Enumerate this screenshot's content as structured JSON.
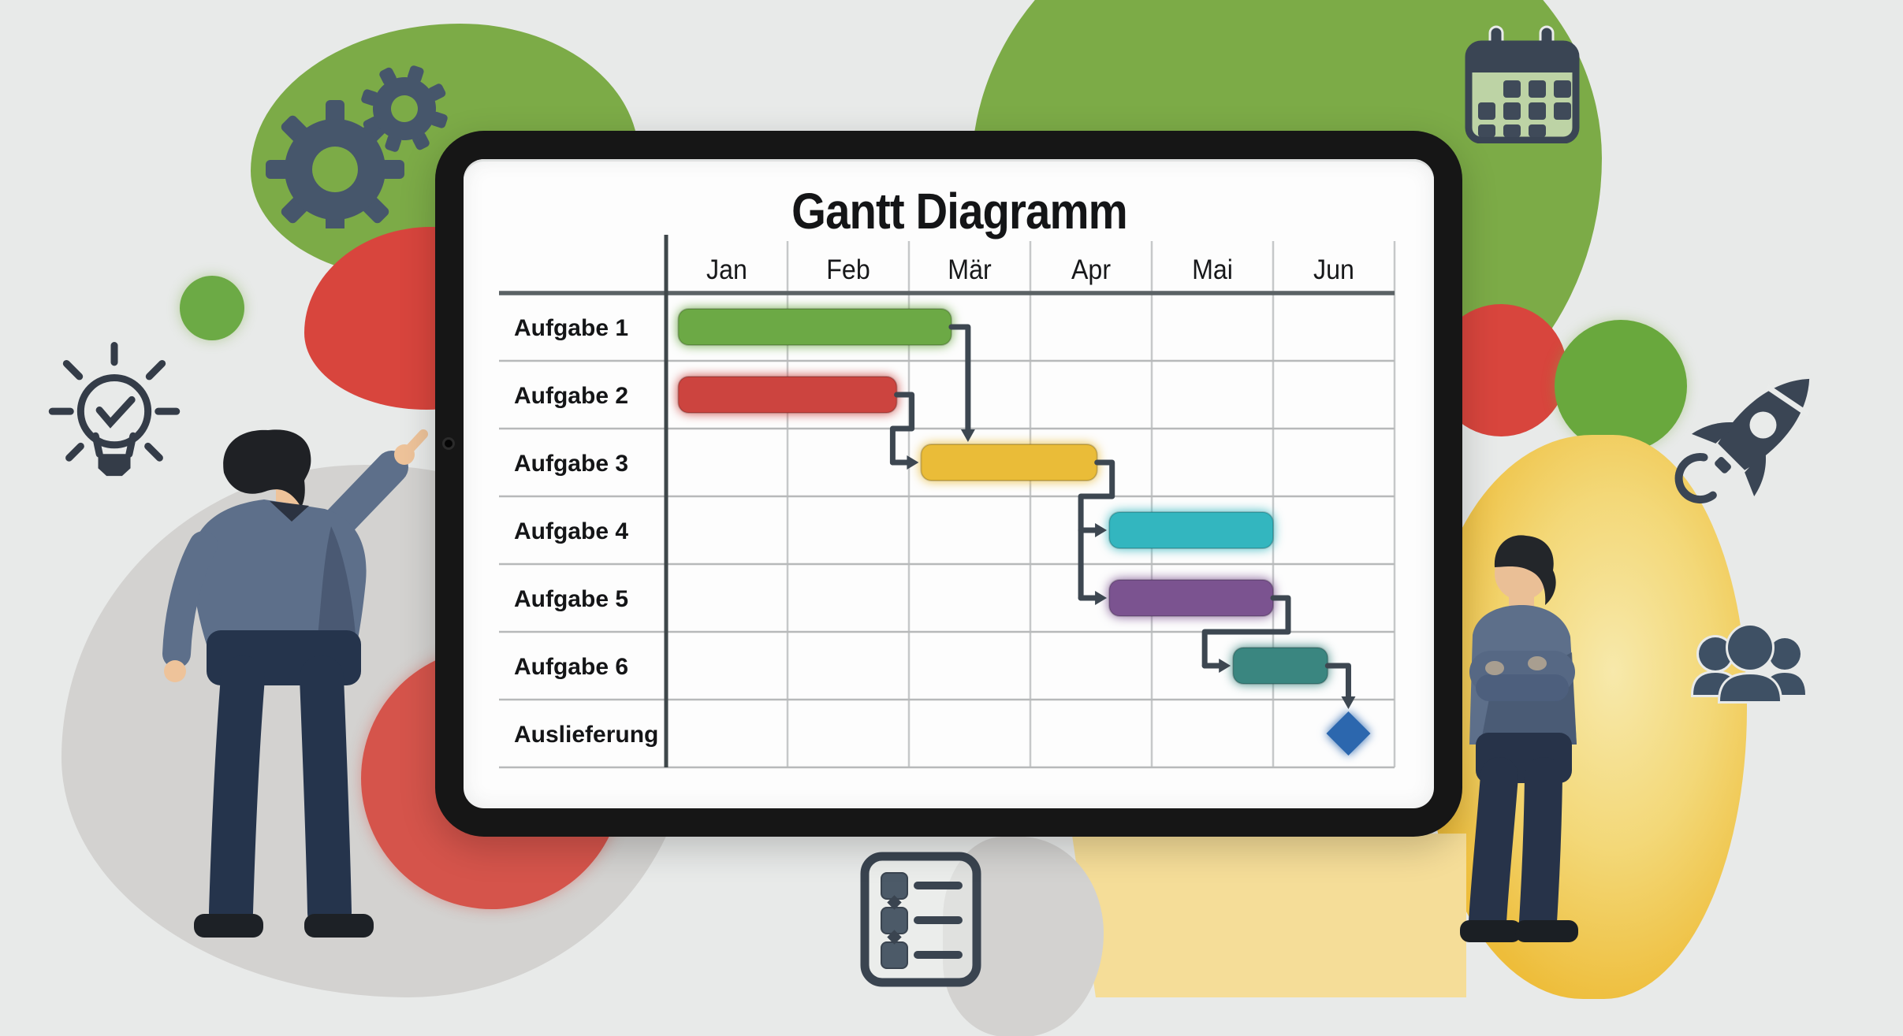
{
  "scene": {
    "background_color": "#e8eae9",
    "accent_colors": {
      "green": "#7cab47",
      "red": "#d8453d",
      "yellow": "#eebd3a",
      "gray": "#d3d2d0",
      "slate_icon": "#3a4554"
    },
    "decorative_icons": [
      "gears-icon",
      "lightbulb-check-icon",
      "calendar-icon",
      "rocket-icon",
      "team-icon",
      "task-list-icon"
    ],
    "people": [
      "man-pointing-left",
      "man-arms-crossed-right"
    ]
  },
  "tablet": {
    "frame_color": "#161616",
    "screen_color": "#fdfdfd"
  },
  "chart_data": {
    "type": "bar",
    "subtype": "gantt",
    "title": "Gantt Diagramm",
    "x_axis": {
      "labels": [
        "Jan",
        "Feb",
        "Mär",
        "Apr",
        "Mai",
        "Jun"
      ],
      "unit": "month",
      "range": [
        0,
        6
      ]
    },
    "grid": true,
    "legend": false,
    "connector_color": "#3d4751",
    "tasks": [
      {
        "label": "Aufgabe 1",
        "start": 0.1,
        "end": 2.35,
        "color": "#6ca945"
      },
      {
        "label": "Aufgabe 2",
        "start": 0.1,
        "end": 1.9,
        "color": "#cc443f"
      },
      {
        "label": "Aufgabe 3",
        "start": 2.1,
        "end": 3.55,
        "color": "#eabc38"
      },
      {
        "label": "Aufgabe 4",
        "start": 3.65,
        "end": 5.0,
        "color": "#33b6bf"
      },
      {
        "label": "Aufgabe 5",
        "start": 3.65,
        "end": 5.0,
        "color": "#7b5390"
      },
      {
        "label": "Aufgabe 6",
        "start": 4.67,
        "end": 5.45,
        "color": "#3a8680"
      },
      {
        "label": "Auslieferung",
        "milestone_at": 5.62,
        "shape": "diamond",
        "color": "#2c67ae"
      }
    ],
    "dependencies": [
      {
        "from": "Aufgabe 1",
        "to": "Aufgabe 3",
        "enter": "top"
      },
      {
        "from": "Aufgabe 2",
        "to": "Aufgabe 3",
        "enter": "left"
      },
      {
        "from": "Aufgabe 3",
        "to": "Aufgabe 4",
        "enter": "left"
      },
      {
        "from": "Aufgabe 3",
        "to": "Aufgabe 5",
        "enter": "left"
      },
      {
        "from": "Aufgabe 5",
        "to": "Aufgabe 6",
        "enter": "left"
      },
      {
        "from": "Aufgabe 6",
        "to": "Auslieferung",
        "enter": "top"
      }
    ]
  }
}
